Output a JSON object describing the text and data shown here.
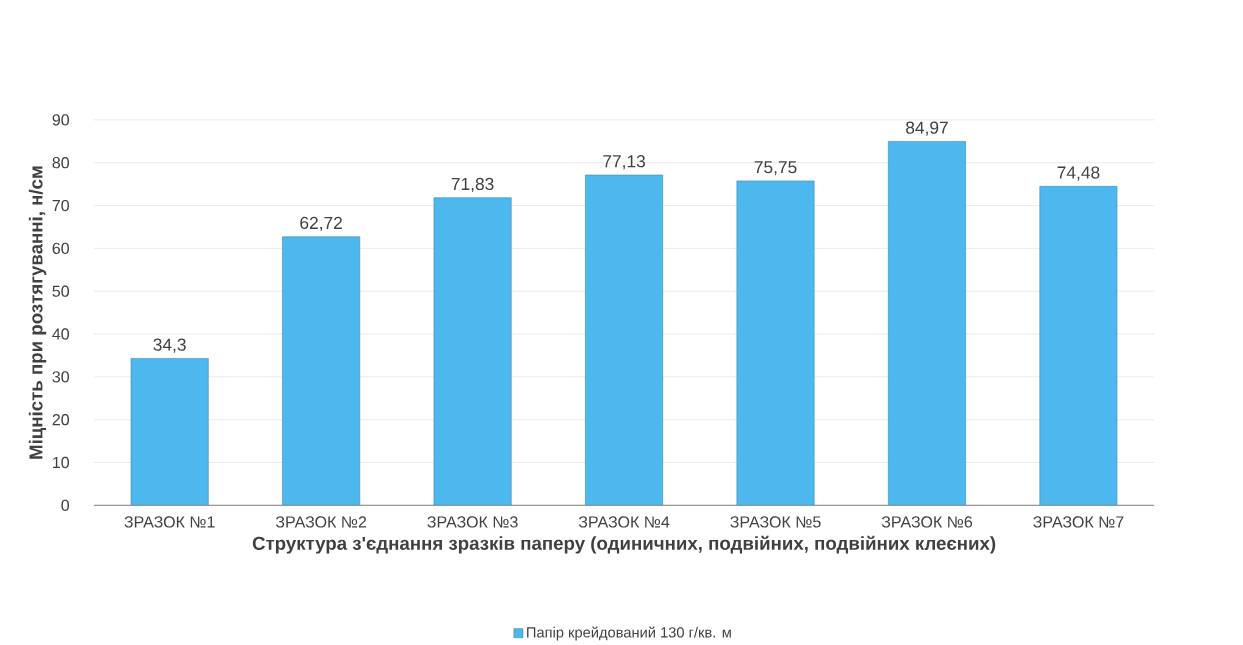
{
  "chart_data": {
    "type": "bar",
    "xlabel": "Структура з'єднання зразків паперу (одиничних, подвійних, подвійних клеєних)",
    "ylabel": "Міцність при розтягуванні, н/см",
    "categories": [
      "ЗРАЗОК №1",
      "ЗРАЗОК №2",
      "ЗРАЗОК №3",
      "ЗРАЗОК №4",
      "ЗРАЗОК №5",
      "ЗРАЗОК №6",
      "ЗРАЗОК №7"
    ],
    "series": [
      {
        "name": "Папір крейдований 130 г/кв. м",
        "color": "#4db8ee",
        "values": [
          34.3,
          62.72,
          71.83,
          77.13,
          75.75,
          84.97,
          74.48
        ],
        "value_labels": [
          "34,3",
          "62,72",
          "71,83",
          "77,13",
          "75,75",
          "84,97",
          "74,48"
        ]
      }
    ],
    "ylim": [
      0,
      90
    ],
    "yticks": [
      0,
      10,
      20,
      30,
      40,
      50,
      60,
      70,
      80,
      90
    ],
    "grid": "y",
    "legend": "bottom"
  }
}
